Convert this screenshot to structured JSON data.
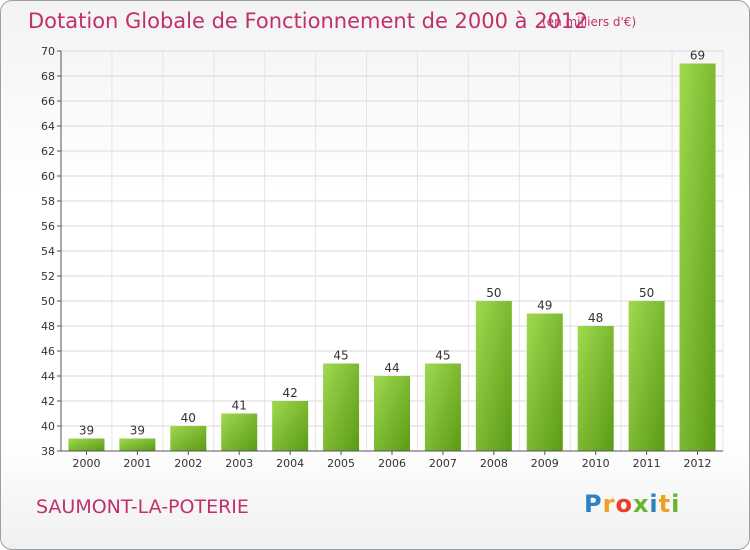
{
  "chart_data": {
    "type": "bar",
    "title": "Dotation Globale de Fonctionnement de 2000 à 2012",
    "subtitle": "(en milliers d'€)",
    "categories": [
      "2000",
      "2001",
      "2002",
      "2003",
      "2004",
      "2005",
      "2006",
      "2007",
      "2008",
      "2009",
      "2010",
      "2011",
      "2012"
    ],
    "values": [
      39,
      39,
      40,
      41,
      42,
      45,
      44,
      45,
      50,
      49,
      48,
      50,
      69
    ],
    "ylim": [
      38,
      70
    ],
    "yticks": [
      38,
      40,
      42,
      44,
      46,
      48,
      50,
      52,
      54,
      56,
      58,
      60,
      62,
      64,
      66,
      68,
      70
    ],
    "grid": true,
    "bar_color": "#6aaa1e"
  },
  "footer": {
    "commune": "SAUMONT-LA-POTERIE",
    "logo_text": "Proxiti"
  }
}
